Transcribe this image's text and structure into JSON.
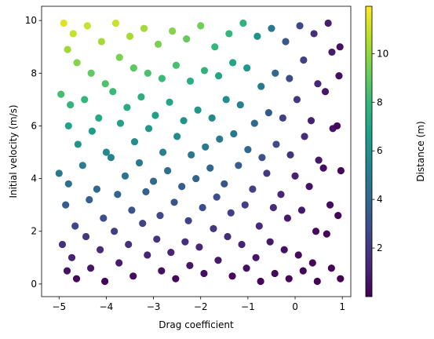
{
  "chart_data": {
    "type": "scatter",
    "xlabel": "Drag coefficient",
    "ylabel": "Initial velocity (m/s)",
    "colorbar_label": "Distance (m)",
    "colormap": "viridis",
    "xlim": [
      -5.37,
      1.18
    ],
    "ylim": [
      -0.48,
      10.54
    ],
    "clim": [
      0,
      11.95
    ],
    "xticks": [
      {
        "value": -5,
        "label": "−5"
      },
      {
        "value": -4,
        "label": "−4"
      },
      {
        "value": -3,
        "label": "−3"
      },
      {
        "value": -2,
        "label": "−2"
      },
      {
        "value": -1,
        "label": "−1"
      },
      0,
      1
    ],
    "yticks": [
      0,
      2,
      4,
      6,
      8,
      10
    ],
    "cticks": [
      2,
      4,
      6,
      8,
      10
    ],
    "x": [
      -4.9,
      -4.82,
      -4.96,
      -4.8,
      -5.0,
      -4.86,
      -4.93,
      -4.83,
      -4.7,
      -4.62,
      -4.76,
      -4.6,
      -4.8,
      -4.66,
      -4.73,
      -4.63,
      -4.4,
      -4.32,
      -4.46,
      -4.3,
      -4.5,
      -4.36,
      -4.43,
      -4.33,
      -4.1,
      -4.02,
      -4.16,
      -4.0,
      -4.2,
      -4.06,
      -4.13,
      -4.03,
      -3.8,
      -3.72,
      -3.86,
      -3.7,
      -3.9,
      -3.76,
      -3.83,
      -3.73,
      -3.5,
      -3.42,
      -3.56,
      -3.4,
      -3.6,
      -3.46,
      -3.53,
      -3.43,
      -3.2,
      -3.12,
      -3.26,
      -3.1,
      -3.3,
      -3.16,
      -3.23,
      -3.13,
      -2.9,
      -2.82,
      -2.96,
      -2.8,
      -3.0,
      -2.86,
      -2.93,
      -2.83,
      -2.6,
      -2.52,
      -2.66,
      -2.5,
      -2.7,
      -2.56,
      -2.63,
      -2.53,
      -2.3,
      -2.22,
      -2.36,
      -2.2,
      -2.4,
      -2.26,
      -2.33,
      -2.23,
      -2.0,
      -1.92,
      -2.06,
      -1.9,
      -2.1,
      -1.96,
      -2.03,
      -1.93,
      -1.7,
      -1.62,
      -1.76,
      -1.6,
      -1.8,
      -1.66,
      -1.73,
      -1.63,
      -1.4,
      -1.32,
      -1.46,
      -1.3,
      -1.5,
      -1.36,
      -1.43,
      -1.33,
      -1.1,
      -1.02,
      -1.16,
      -1.0,
      -1.2,
      -1.06,
      -1.13,
      -1.03,
      -0.8,
      -0.72,
      -0.86,
      -0.7,
      -0.9,
      -0.76,
      -0.83,
      -0.73,
      -0.5,
      -0.42,
      -0.56,
      -0.4,
      -0.6,
      -0.46,
      -0.53,
      -0.43,
      -0.2,
      -0.12,
      -0.26,
      -0.1,
      -0.3,
      -0.16,
      -0.23,
      -0.13,
      0.1,
      0.18,
      0.04,
      0.2,
      0.0,
      0.14,
      0.07,
      0.17,
      0.4,
      0.48,
      0.34,
      0.5,
      0.3,
      0.44,
      0.37,
      0.47,
      0.7,
      0.78,
      0.64,
      0.8,
      0.6,
      0.74,
      0.67,
      0.77,
      0.95,
      0.93,
      0.89,
      0.97,
      0.91,
      0.96
    ],
    "y": [
      9.9,
      8.9,
      7.2,
      6.0,
      4.2,
      3.0,
      1.5,
      0.5,
      9.5,
      8.4,
      6.8,
      5.3,
      3.8,
      2.2,
      1.0,
      0.2,
      9.8,
      8.0,
      7.0,
      5.8,
      4.5,
      3.2,
      1.8,
      0.6,
      9.2,
      7.6,
      6.3,
      5.0,
      3.6,
      2.5,
      1.3,
      0.1,
      9.9,
      8.6,
      7.3,
      6.1,
      4.8,
      3.4,
      2.0,
      0.8,
      9.4,
      8.2,
      6.7,
      5.4,
      4.1,
      2.8,
      1.5,
      0.3,
      9.7,
      8.0,
      7.1,
      5.9,
      4.6,
      3.5,
      2.3,
      1.1,
      9.1,
      7.8,
      6.4,
      5.0,
      3.9,
      2.6,
      1.7,
      0.5,
      9.6,
      8.3,
      6.9,
      5.6,
      4.3,
      3.1,
      1.2,
      0.2,
      9.3,
      7.7,
      6.2,
      4.9,
      3.7,
      2.4,
      1.6,
      0.7,
      9.8,
      8.1,
      6.6,
      5.2,
      4.0,
      2.9,
      1.4,
      0.4,
      9.0,
      7.9,
      6.3,
      5.5,
      4.4,
      3.3,
      2.1,
      0.9,
      9.5,
      8.4,
      7.0,
      5.7,
      3.8,
      2.7,
      1.8,
      0.3,
      9.9,
      8.2,
      6.8,
      5.1,
      4.5,
      3.0,
      1.5,
      0.6,
      9.4,
      7.5,
      6.1,
      4.8,
      3.6,
      2.2,
      1.0,
      0.1,
      9.7,
      8.0,
      6.5,
      5.3,
      4.2,
      2.9,
      1.6,
      0.4,
      9.2,
      7.8,
      6.3,
      4.9,
      3.4,
      2.5,
      1.3,
      0.2,
      9.8,
      8.5,
      7.0,
      5.6,
      4.1,
      2.8,
      1.1,
      0.5,
      9.5,
      7.6,
      6.2,
      4.7,
      3.7,
      2.0,
      0.8,
      0.1,
      9.9,
      8.8,
      7.3,
      5.9,
      4.4,
      3.0,
      1.9,
      0.6,
      9.0,
      7.9,
      6.0,
      4.3,
      2.6,
      0.2
    ],
    "c": [
      11.4,
      10.2,
      8.3,
      6.9,
      4.8,
      3.5,
      1.7,
      0.6,
      10.9,
      9.7,
      7.8,
      6.1,
      4.4,
      2.5,
      1.2,
      0.2,
      11.0,
      9.0,
      7.9,
      6.6,
      5.1,
      3.6,
      2.0,
      0.7,
      10.3,
      8.5,
      7.1,
      5.6,
      4.0,
      2.8,
      1.5,
      0.1,
      11.0,
      9.5,
      8.1,
      6.8,
      5.3,
      3.8,
      2.2,
      0.9,
      10.3,
      8.9,
      7.3,
      5.9,
      4.5,
      3.1,
      1.6,
      0.3,
      10.3,
      8.5,
      7.5,
      6.3,
      4.9,
      3.7,
      2.4,
      1.2,
      9.5,
      8.1,
      6.7,
      5.2,
      4.1,
      2.7,
      1.8,
      0.5,
      9.7,
      8.4,
      7.0,
      5.7,
      4.3,
      3.1,
      1.2,
      0.2,
      9.1,
      7.5,
      6.1,
      4.8,
      3.6,
      2.4,
      1.6,
      0.7,
      9.3,
      7.7,
      6.3,
      4.9,
      3.8,
      2.8,
      1.3,
      0.4,
      8.0,
      7.0,
      5.6,
      4.9,
      3.9,
      2.9,
      1.9,
      0.8,
      7.9,
      7.0,
      5.8,
      4.7,
      3.2,
      2.2,
      1.5,
      0.2,
      7.7,
      6.4,
      5.3,
      4.0,
      3.5,
      2.3,
      1.2,
      0.5,
      6.1,
      4.9,
      4.0,
      3.1,
      2.3,
      1.4,
      0.7,
      0.1,
      4.9,
      4.0,
      3.3,
      2.7,
      2.1,
      1.5,
      0.8,
      0.2,
      3.3,
      2.8,
      2.3,
      1.8,
      1.2,
      0.9,
      0.5,
      0.1,
      2.6,
      2.3,
      1.9,
      1.5,
      1.1,
      0.8,
      0.3,
      0.1,
      1.6,
      1.3,
      1.1,
      0.8,
      0.6,
      0.3,
      0.1,
      0.0,
      1.0,
      0.9,
      0.7,
      0.6,
      0.4,
      0.3,
      0.2,
      0.1,
      0.5,
      0.4,
      0.3,
      0.2,
      0.1,
      0.0
    ]
  }
}
